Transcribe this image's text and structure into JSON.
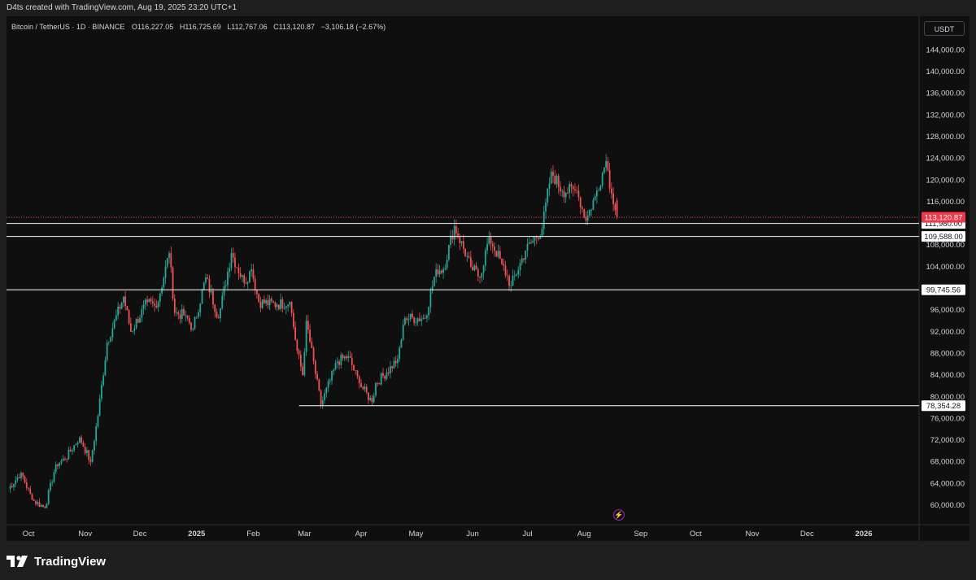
{
  "header": {
    "credit": "D4ts created with TradingView.com, Aug 19, 2025 23:20 UTC+1"
  },
  "legend": {
    "symbol": "Bitcoin / TetherUS · 1D · BINANCE",
    "open_label": "O",
    "open": "116,227.05",
    "high_label": "H",
    "high": "116,725.69",
    "low_label": "L",
    "low": "112,767.06",
    "close_label": "C",
    "close": "113,120.87",
    "change": "−3,106.18 (−2.67%)"
  },
  "currency": "USDT",
  "brand": {
    "name": "TradingView",
    "logo_icon": "tradingview-logo-icon"
  },
  "flash_icon": "lightning-icon",
  "colors": {
    "up": "#26a69a",
    "down": "#ef5350",
    "bg": "#0f0f0f",
    "price_badge": "#f23645",
    "line": "#ffffff",
    "flash": "#9c27b0"
  },
  "chart_data": {
    "type": "candlestick",
    "symbol": "BTCUSDT",
    "timeframe": "1D",
    "y_ticks": [
      60000,
      64000,
      68000,
      72000,
      76000,
      80000,
      84000,
      88000,
      92000,
      96000,
      100000,
      104000,
      108000,
      112000,
      116000,
      120000,
      124000,
      128000,
      132000,
      136000,
      140000,
      144000
    ],
    "y_tick_labels": [
      "60,000.00",
      "64,000.00",
      "68,000.00",
      "72,000.00",
      "76,000.00",
      "80,000.00",
      "84,000.00",
      "88,000.00",
      "92,000.00",
      "96,000.00",
      "100,000.00",
      "104,000.00",
      "108,000.00",
      "112,000.00",
      "116,000.00",
      "120,000.00",
      "124,000.00",
      "128,000.00",
      "132,000.00",
      "136,000.00",
      "140,000.00",
      "144,000.00"
    ],
    "x_labels": [
      "Oct",
      "Nov",
      "Dec",
      "2025",
      "Feb",
      "Mar",
      "Apr",
      "May",
      "Jun",
      "Jul",
      "Aug",
      "Sep",
      "Oct",
      "Nov",
      "Dec",
      "2026"
    ],
    "x_label_dates": [
      "2024-10-01",
      "2024-11-01",
      "2024-12-01",
      "2025-01-01",
      "2025-02-01",
      "2025-03-01",
      "2025-04-01",
      "2025-05-01",
      "2025-06-01",
      "2025-07-01",
      "2025-08-01",
      "2025-09-01",
      "2025-10-01",
      "2025-11-01",
      "2025-12-01",
      "2026-01-01"
    ],
    "anchors": [
      [
        "2024-09-20",
        63000
      ],
      [
        "2024-09-27",
        66000
      ],
      [
        "2024-10-03",
        61000
      ],
      [
        "2024-10-10",
        59500
      ],
      [
        "2024-10-16",
        67500
      ],
      [
        "2024-10-21",
        68500
      ],
      [
        "2024-10-29",
        72500
      ],
      [
        "2024-11-04",
        68000
      ],
      [
        "2024-11-08",
        76500
      ],
      [
        "2024-11-13",
        90000
      ],
      [
        "2024-11-22",
        98500
      ],
      [
        "2024-11-26",
        92000
      ],
      [
        "2024-12-05",
        97500
      ],
      [
        "2024-12-10",
        96500
      ],
      [
        "2024-12-17",
        106500
      ],
      [
        "2024-12-20",
        95500
      ],
      [
        "2024-12-26",
        95000
      ],
      [
        "2024-12-30",
        92500
      ],
      [
        "2025-01-06",
        102000
      ],
      [
        "2025-01-13",
        94500
      ],
      [
        "2025-01-20",
        106500
      ],
      [
        "2025-01-27",
        101000
      ],
      [
        "2025-01-31",
        103500
      ],
      [
        "2025-02-04",
        97500
      ],
      [
        "2025-02-14",
        97000
      ],
      [
        "2025-02-21",
        97500
      ],
      [
        "2025-02-25",
        88500
      ],
      [
        "2025-02-28",
        84000
      ],
      [
        "2025-03-02",
        94000
      ],
      [
        "2025-03-10",
        78500
      ],
      [
        "2025-03-19",
        86500
      ],
      [
        "2025-03-25",
        87500
      ],
      [
        "2025-03-31",
        82500
      ],
      [
        "2025-04-07",
        79000
      ],
      [
        "2025-04-09",
        82500
      ],
      [
        "2025-04-15",
        84500
      ],
      [
        "2025-04-21",
        87000
      ],
      [
        "2025-04-25",
        94500
      ],
      [
        "2025-05-06",
        94500
      ],
      [
        "2025-05-12",
        103500
      ],
      [
        "2025-05-16",
        103500
      ],
      [
        "2025-05-22",
        111500
      ],
      [
        "2025-05-31",
        104000
      ],
      [
        "2025-06-05",
        102000
      ],
      [
        "2025-06-10",
        109500
      ],
      [
        "2025-06-17",
        104500
      ],
      [
        "2025-06-22",
        100500
      ],
      [
        "2025-06-30",
        107000
      ],
      [
        "2025-07-09",
        111000
      ],
      [
        "2025-07-14",
        121500
      ],
      [
        "2025-07-20",
        118000
      ],
      [
        "2025-07-28",
        118000
      ],
      [
        "2025-08-02",
        112500
      ],
      [
        "2025-08-07",
        117000
      ],
      [
        "2025-08-13",
        123500
      ],
      [
        "2025-08-16",
        117500
      ],
      [
        "2025-08-19",
        113120.87
      ]
    ],
    "last_bar": {
      "date": "2025-08-19",
      "open": 116227.05,
      "high": 116725.69,
      "low": 112767.06,
      "close": 113120.87
    },
    "horizontal_lines": [
      {
        "price": 111980.0,
        "label": "111,980.00",
        "from": "chart-start"
      },
      {
        "price": 109588.0,
        "label": "109,588.00",
        "from": "chart-start"
      },
      {
        "price": 99745.56,
        "label": "99,745.56",
        "from": "chart-start"
      },
      {
        "price": 78354.28,
        "label": "78,354.28",
        "from": "2025-02-26"
      }
    ],
    "last_price": {
      "price": 113120.87,
      "label": "113,120.87"
    },
    "grid": false
  }
}
